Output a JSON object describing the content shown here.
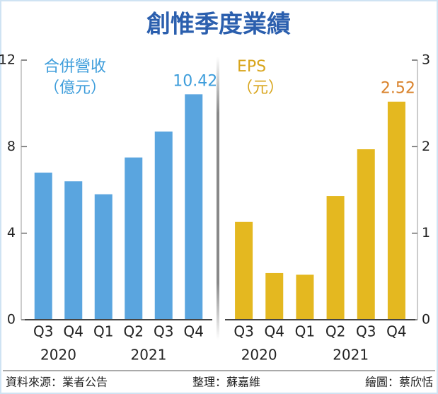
{
  "title": "創惟季度業績",
  "chart_data": [
    {
      "type": "bar",
      "label_lines": [
        "合併營收",
        "（億元）"
      ],
      "categories": [
        "Q3",
        "Q4",
        "Q1",
        "Q2",
        "Q3",
        "Q4"
      ],
      "groups": [
        "2020",
        "2021"
      ],
      "values": [
        6.8,
        6.4,
        5.8,
        7.5,
        8.7,
        10.42
      ],
      "value_labels": [
        null,
        null,
        null,
        null,
        null,
        "10.42"
      ],
      "color": "#5aa5df",
      "label_color": "#3d9ddb",
      "ylim": [
        0,
        12
      ],
      "yticks": [
        0,
        4,
        8,
        12
      ],
      "axis_side": "left"
    },
    {
      "type": "bar",
      "label_lines": [
        "EPS",
        "（元）"
      ],
      "categories": [
        "Q3",
        "Q4",
        "Q1",
        "Q2",
        "Q3",
        "Q4"
      ],
      "groups": [
        "2020",
        "2021"
      ],
      "values": [
        1.13,
        0.54,
        0.52,
        1.43,
        1.97,
        2.52
      ],
      "value_labels": [
        null,
        null,
        null,
        null,
        null,
        "2.52"
      ],
      "color": "#e4b820",
      "label_color": "#d8a51c",
      "ylim": [
        0,
        3
      ],
      "yticks": [
        0,
        1,
        2,
        3
      ],
      "axis_side": "right"
    }
  ],
  "footer": {
    "source": "資料來源：業者公告",
    "editor": "整理：蘇嘉維",
    "artist": "繪圖：蔡欣恬"
  }
}
